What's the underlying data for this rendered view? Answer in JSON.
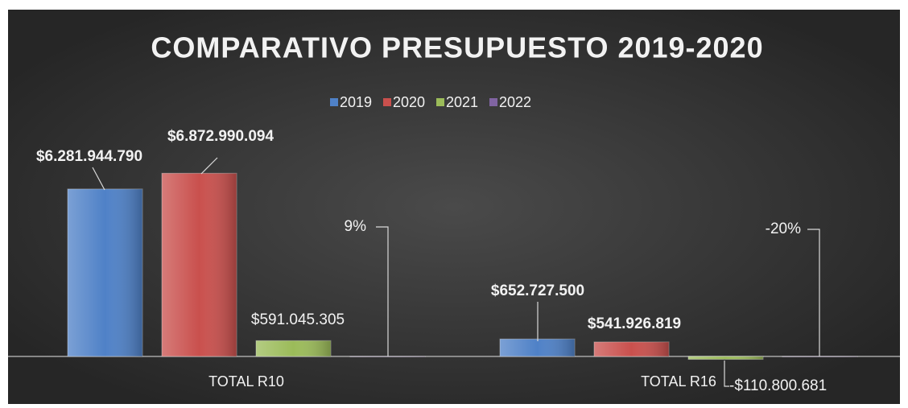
{
  "chart_data": {
    "type": "bar",
    "title": "COMPARATIVO PRESUPUESTO 2019-2020",
    "categories": [
      "TOTAL R10",
      "TOTAL R16"
    ],
    "series": [
      {
        "name": "2019",
        "color": "#4f81c7",
        "values": [
          6281944790,
          652727500
        ],
        "value_labels": [
          "$6.281.944.790",
          "$652.727.500"
        ]
      },
      {
        "name": "2020",
        "color": "#c9504d",
        "values": [
          6872990094,
          541926819
        ],
        "value_labels": [
          "$6.872.990.094",
          "$541.926.819"
        ]
      },
      {
        "name": "2021",
        "color": "#9bbb59",
        "values": [
          591045305,
          -110800681
        ],
        "value_labels": [
          "$591.045.305",
          "-$110.800.681"
        ]
      },
      {
        "name": "2022",
        "color": "#8064a2",
        "values": [
          9,
          -20
        ],
        "value_labels": [
          "9%",
          "-20%"
        ]
      }
    ],
    "ylim": [
      -1000000000,
      8000000000
    ],
    "legend": "top"
  }
}
